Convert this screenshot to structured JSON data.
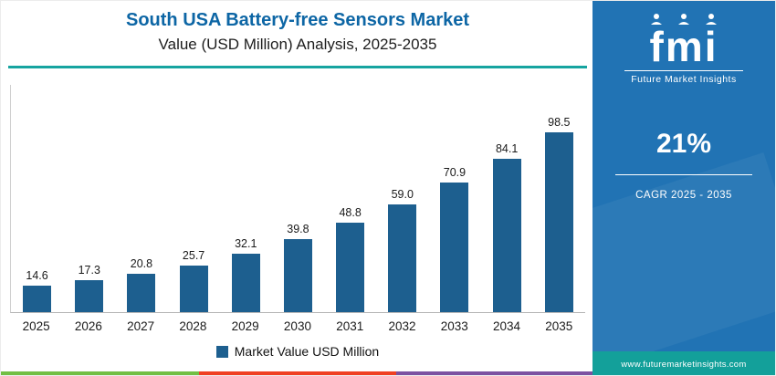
{
  "header": {
    "title": "South USA Battery-free Sensors Market",
    "subtitle": "Value (USD Million) Analysis, 2025-2035"
  },
  "chart_data": {
    "type": "bar",
    "title": "South USA Battery-free Sensors Market Value (USD Million) Analysis, 2025-2035",
    "categories": [
      "2025",
      "2026",
      "2027",
      "2028",
      "2029",
      "2030",
      "2031",
      "2032",
      "2033",
      "2034",
      "2035"
    ],
    "values": [
      14.6,
      17.3,
      20.8,
      25.7,
      32.1,
      39.8,
      48.8,
      59.0,
      70.9,
      84.1,
      98.5
    ],
    "value_labels": [
      "14.6",
      "17.3",
      "20.8",
      "25.7",
      "32.1",
      "39.8",
      "48.8",
      "59.0",
      "70.9",
      "84.1",
      "98.5"
    ],
    "xlabel": "",
    "ylabel": "Market Value USD Million",
    "ylim": [
      0,
      100
    ],
    "grid": false,
    "legend_position": "bottom",
    "bar_color": "#1d5f8f"
  },
  "legend": {
    "label": "Market Value USD Million"
  },
  "sidebar": {
    "logo_text": "fmi",
    "logo_subtext": "Future Market Insights",
    "stat": "21%",
    "stat_label": "CAGR 2025 - 2035",
    "url": "www.futuremarketinsights.com"
  },
  "colors": {
    "title_blue": "#0d66a5",
    "bar_blue": "#1d5f8f",
    "accent_teal": "#16a4a0",
    "panel_blue": "#2173b4",
    "url_bar_teal": "#13a09a",
    "strip_green": "#72bf44",
    "strip_red": "#ef4123",
    "strip_purple": "#7c51a1"
  }
}
